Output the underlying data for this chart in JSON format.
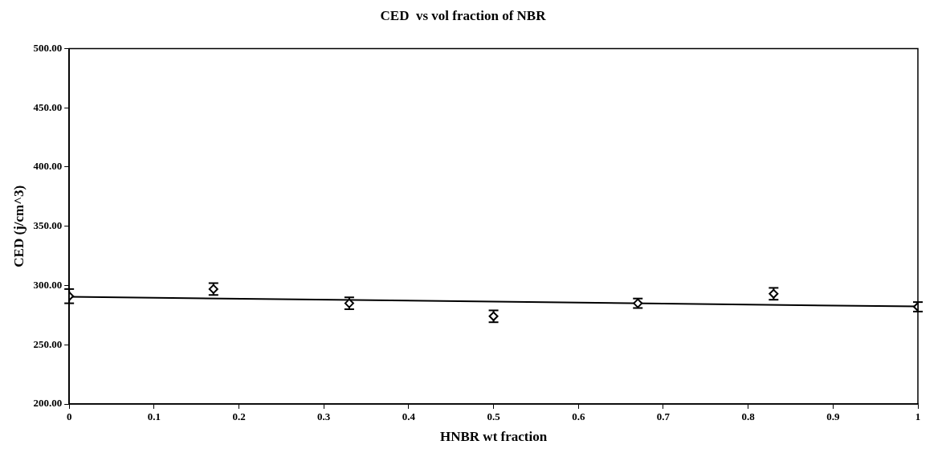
{
  "chart_data": {
    "type": "scatter",
    "title": "CED  vs vol fraction of NBR",
    "xlabel": "HNBR wt fraction",
    "ylabel": "CED (j/cm^3)",
    "xlim": [
      0,
      1
    ],
    "xticks": [
      0,
      0.1,
      0.2,
      0.3,
      0.4,
      0.5,
      0.6,
      0.7,
      0.8,
      0.9,
      1
    ],
    "ylim": [
      200,
      500
    ],
    "yticks": [
      {
        "value": 200,
        "label": "200.00"
      },
      {
        "value": 250,
        "label": "250.00"
      },
      {
        "value": 300,
        "label": "300.00"
      },
      {
        "value": 350,
        "label": "350.00"
      },
      {
        "value": 400,
        "label": "400.00"
      },
      {
        "value": 450,
        "label": "450.00"
      },
      {
        "value": 500,
        "label": "500.00"
      }
    ],
    "grid": false,
    "legend": false,
    "marker": "diamond",
    "series": [
      {
        "color": "#000000",
        "x": [
          0,
          0.17,
          0.33,
          0.5,
          0.67,
          0.83,
          1
        ],
        "values": [
          291,
          297,
          285,
          274,
          285,
          293,
          282
        ],
        "errors": [
          6,
          5,
          5,
          5,
          4,
          5,
          4
        ]
      },
      {
        "type": "line",
        "marker": "none",
        "color": "#000000",
        "x": [
          0,
          1
        ],
        "values": [
          290.5,
          282.3
        ]
      }
    ]
  }
}
